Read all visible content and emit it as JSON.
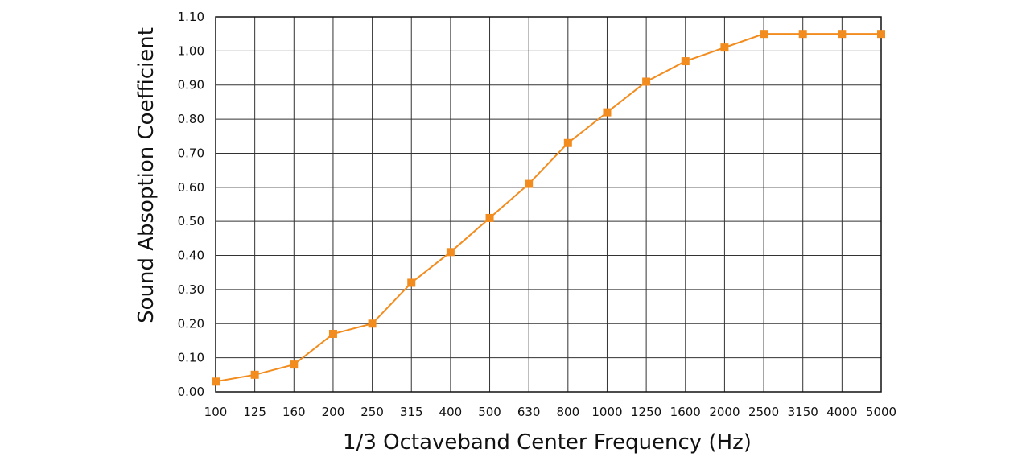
{
  "chart_data": {
    "type": "line",
    "title": "",
    "xlabel": "1/3 Octaveband Center Frequency (Hz)",
    "ylabel": "Sound Absoption Coefficient",
    "categories": [
      "100",
      "125",
      "160",
      "200",
      "250",
      "315",
      "400",
      "500",
      "630",
      "800",
      "1000",
      "1250",
      "1600",
      "2000",
      "2500",
      "3150",
      "4000",
      "5000"
    ],
    "yticks": [
      "0.00",
      "0.10",
      "0.20",
      "0.30",
      "0.40",
      "0.50",
      "0.60",
      "0.70",
      "0.80",
      "0.90",
      "1.00",
      "1.10"
    ],
    "ylim": [
      0,
      1.1
    ],
    "grid": true,
    "legend": "none",
    "series": [
      {
        "values": [
          0.03,
          0.05,
          0.08,
          0.17,
          0.2,
          0.32,
          0.41,
          0.51,
          0.61,
          0.73,
          0.82,
          0.91,
          0.97,
          1.01,
          1.05,
          1.05,
          1.05,
          1.05
        ],
        "color": "#f28c1e",
        "marker": "square"
      }
    ]
  }
}
